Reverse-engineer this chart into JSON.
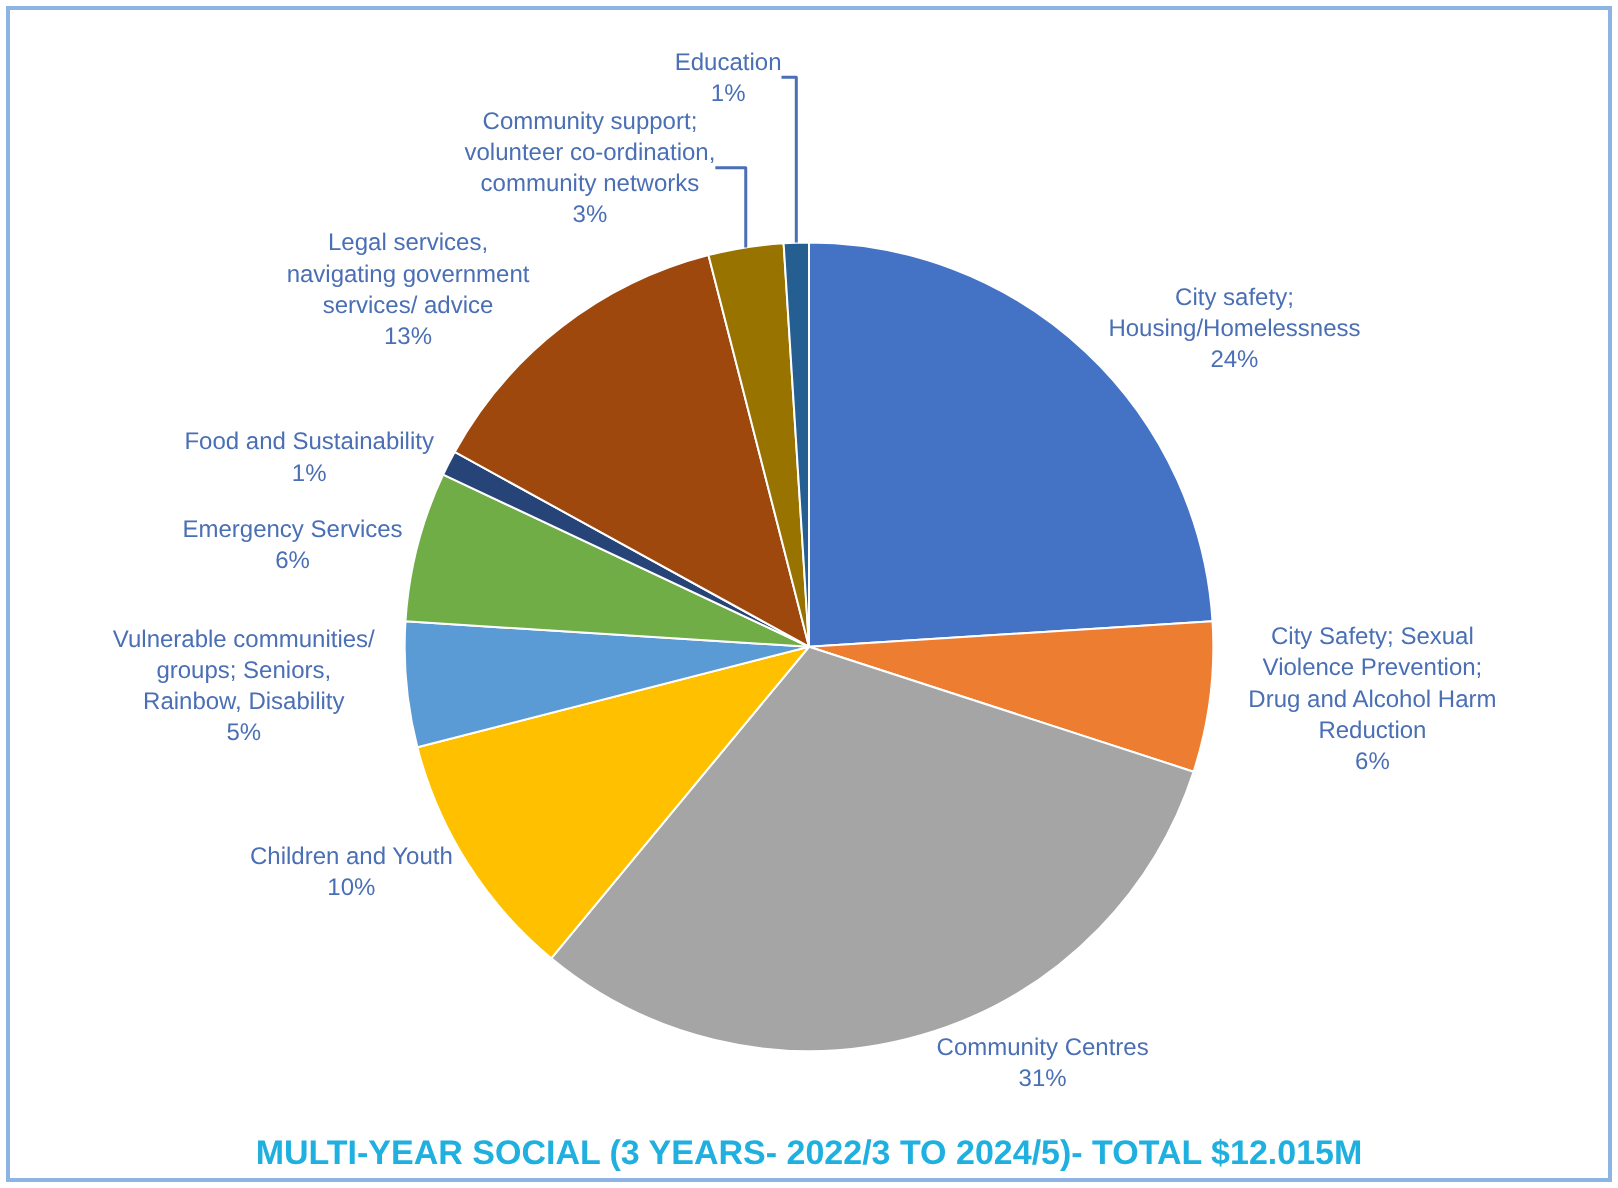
{
  "chart_data": {
    "type": "pie",
    "title": "MULTI-YEAR SOCIAL (3 YEARS- 2022/3 TO 2024/5)- TOTAL $12.015M",
    "categories": [
      "City safety; Housing/Homelessness",
      "City Safety; Sexual Violence Prevention; Drug and Alcohol Harm Reduction",
      "Community Centres",
      "Children and Youth",
      "Vulnerable communities/ groups; Seniors, Rainbow, Disability",
      "Emergency Services",
      "Food and Sustainability",
      "Legal services, navigating government services/ advice",
      "Community support; volunteer co-ordination, community networks",
      "Education"
    ],
    "values": [
      24,
      6,
      31,
      10,
      5,
      6,
      1,
      13,
      3,
      1
    ],
    "value_labels": [
      "24%",
      "6%",
      "31%",
      "10%",
      "5%",
      "6%",
      "1%",
      "13%",
      "3%",
      "1%"
    ],
    "colors": [
      "#4472c4",
      "#ed7d31",
      "#a5a5a5",
      "#ffc000",
      "#5b9bd5",
      "#70ad47",
      "#264478",
      "#9e480e",
      "#997300",
      "#255e91"
    ]
  }
}
